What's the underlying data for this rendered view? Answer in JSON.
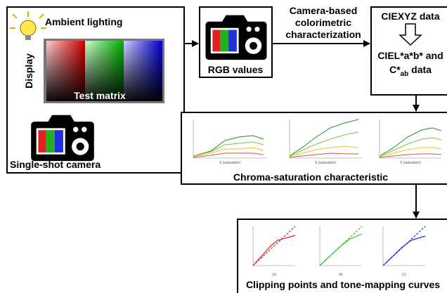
{
  "left_panel": {
    "ambient": "Ambient lighting",
    "display": "Display",
    "test_matrix": "Test matrix",
    "camera": "Single-shot camera"
  },
  "rgb_panel": {
    "label": "RGB values"
  },
  "arrow_label": [
    "Camera-based",
    "colorimetric",
    "characterization"
  ],
  "color_panel": {
    "ciexyz": "CIEXYZ data",
    "cielab": "CIEL*a*b* and",
    "chroma_prefix": "C*",
    "chroma_sub": "ab",
    "chroma_suffix": " data"
  },
  "chroma_panel": {
    "title": "Chroma-saturation characteristic",
    "x_label": "S (saturation)"
  },
  "curves_panel": {
    "title": "Clipping points and tone-mapping curves",
    "captions": [
      "(a)",
      "(b)",
      "(c)"
    ]
  }
}
